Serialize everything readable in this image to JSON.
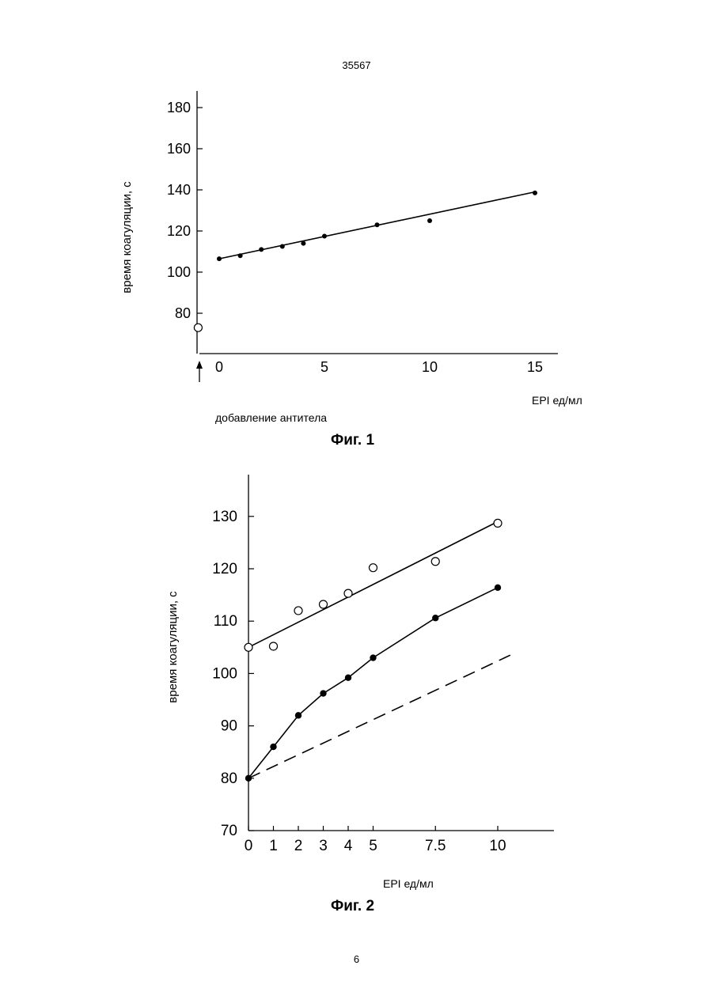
{
  "page": {
    "number_top": "35567",
    "number_bottom": "6"
  },
  "figure1": {
    "caption": "Фиг. 1",
    "annotation": "добавление антитела"
  },
  "figure2": {
    "caption": "Фиг. 2"
  },
  "chart_data": [
    {
      "type": "scatter",
      "title": "",
      "xlabel": "EPI ед/мл",
      "ylabel": "время коагуляции, с",
      "xlim": [
        -1,
        16.5
      ],
      "ylim": [
        63,
        192
      ],
      "xticks": [
        0,
        5,
        10,
        15
      ],
      "xtick_labels": [
        "0",
        "5",
        "10",
        "15"
      ],
      "yticks": [
        80,
        100,
        120,
        140,
        160,
        180
      ],
      "ytick_labels": [
        "80",
        "100",
        "120",
        "140",
        "160",
        "180"
      ],
      "grid": false,
      "legend": "none",
      "series": [
        {
          "marker": "filled",
          "x": [
            0,
            1,
            2,
            3,
            4,
            5,
            7.5,
            10,
            15
          ],
          "y": [
            106.5,
            108,
            111,
            112.5,
            114,
            117.5,
            123,
            125,
            138.5
          ]
        },
        {
          "marker": "open",
          "x": [
            -1
          ],
          "y": [
            73
          ]
        }
      ],
      "fit_lines": [
        {
          "style": "solid",
          "x": [
            0,
            15
          ],
          "y": [
            106.5,
            139
          ]
        }
      ]
    },
    {
      "type": "scatter",
      "title": "",
      "xlabel": "EPI ед/мл",
      "ylabel": "время коагуляции, с",
      "xlim": [
        0,
        12.2
      ],
      "ylim": [
        70,
        137
      ],
      "xticks": [
        0,
        1,
        2,
        3,
        4,
        5,
        7.5,
        10
      ],
      "xtick_labels": [
        "0",
        "1",
        "2",
        "3",
        "4",
        "5",
        "7.5",
        "10"
      ],
      "yticks": [
        70,
        80,
        90,
        100,
        110,
        120,
        130
      ],
      "ytick_labels": [
        "70",
        "80",
        "90",
        "100",
        "110",
        "120",
        "130"
      ],
      "grid": false,
      "legend": "none",
      "series": [
        {
          "marker": "open",
          "x": [
            0,
            1,
            2,
            3,
            4,
            5,
            7.5,
            10
          ],
          "y": [
            105,
            105.2,
            112,
            113.2,
            115.3,
            120.2,
            121.4,
            128.7
          ]
        },
        {
          "marker": "filled",
          "x": [
            0,
            1,
            2,
            3,
            4,
            5,
            7.5,
            10
          ],
          "y": [
            80,
            86,
            92,
            96.2,
            99.2,
            103,
            110.6,
            116.4
          ]
        }
      ],
      "fit_lines": [
        {
          "style": "solid",
          "x": [
            0,
            10
          ],
          "y": [
            105,
            129
          ]
        },
        {
          "style": "solid",
          "x": [
            0,
            1,
            2,
            3,
            4,
            5,
            7.5,
            10
          ],
          "y": [
            80,
            86,
            92,
            96.2,
            99.2,
            103,
            110.6,
            116.4
          ]
        },
        {
          "style": "dashed",
          "x": [
            0,
            10.5
          ],
          "y": [
            80,
            103.5
          ]
        }
      ]
    }
  ]
}
